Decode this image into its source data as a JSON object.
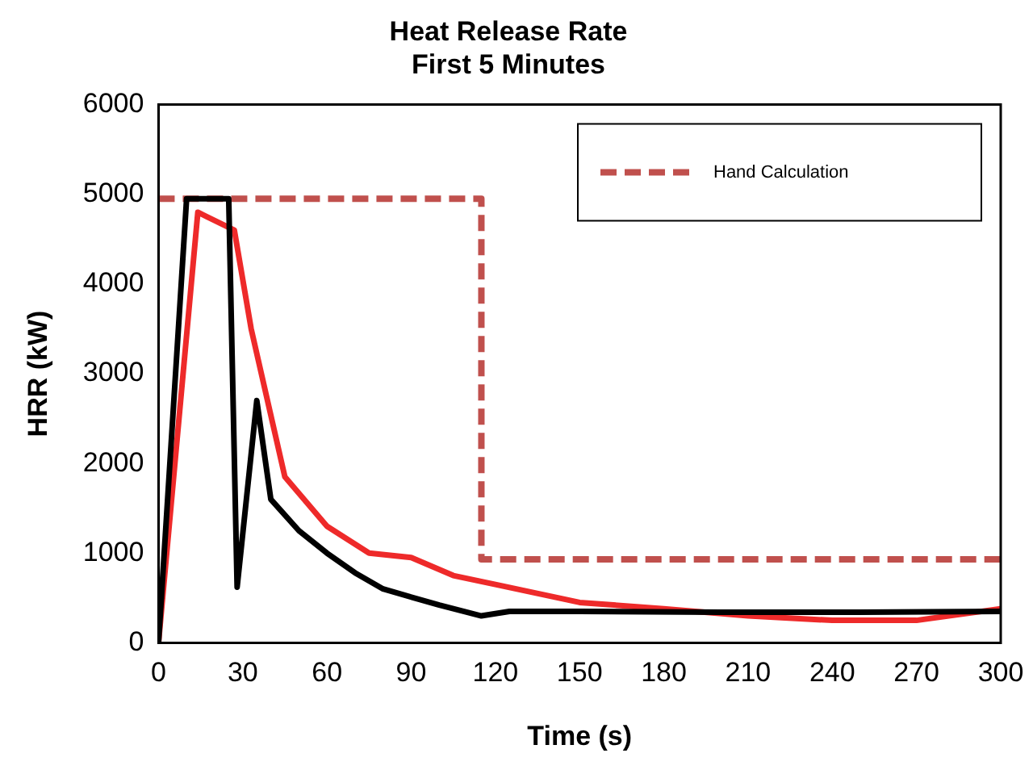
{
  "chart_data": {
    "type": "line",
    "title": "Heat Release Rate\nFirst 5 Minutes",
    "xlabel": "Time (s)",
    "ylabel": "HRR (kW)",
    "xlim": [
      0,
      300
    ],
    "xticks": [
      0,
      30,
      60,
      90,
      120,
      150,
      180,
      210,
      240,
      270,
      300
    ],
    "ylim": [
      0,
      6000
    ],
    "yticks": [
      0,
      1000,
      2000,
      3000,
      4000,
      5000,
      6000
    ],
    "grid": false,
    "legend": "top right",
    "marker": "none",
    "series": [
      {
        "color": "#000000",
        "x": [
          0,
          10,
          25,
          28,
          35,
          40,
          50,
          60,
          70,
          80,
          100,
          115,
          125,
          150,
          200,
          250,
          300
        ],
        "values": [
          0,
          4950,
          4950,
          620,
          2700,
          1600,
          1250,
          1000,
          780,
          600,
          420,
          300,
          350,
          350,
          340,
          340,
          350
        ]
      },
      {
        "color": "#ee2a2a",
        "x": [
          0,
          14,
          27,
          33,
          45,
          60,
          75,
          90,
          105,
          120,
          150,
          180,
          210,
          240,
          270,
          300
        ],
        "values": [
          0,
          4800,
          4600,
          3500,
          1850,
          1300,
          1000,
          950,
          750,
          650,
          450,
          380,
          300,
          250,
          250,
          380
        ]
      },
      {
        "name": "Hand Calculation",
        "color": "#c0504d",
        "line_style": "dashed",
        "x": [
          0,
          115,
          115,
          300
        ],
        "values": [
          4950,
          4950,
          930,
          930
        ]
      }
    ]
  }
}
